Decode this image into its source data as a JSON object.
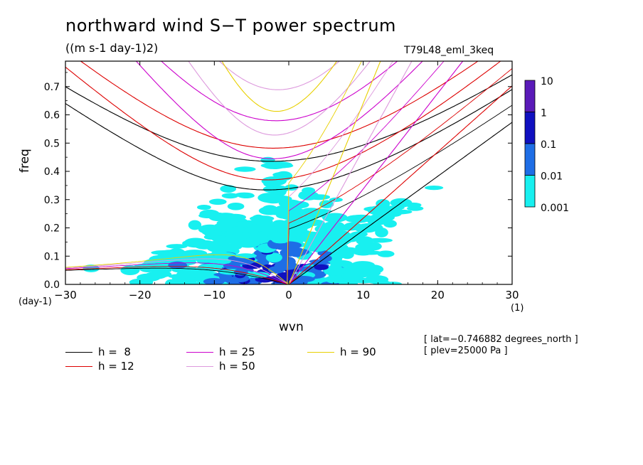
{
  "chart_data": {
    "type": "heatmap",
    "title": "northward wind S−T power spectrum",
    "units": "((m s-1 day-1)2)",
    "run_id": "T79L48_eml_3keq",
    "xlabel": "wvn",
    "ylabel": "freq",
    "x_unit": "(1)",
    "y_unit": "(day-1)",
    "xlim": [
      -30,
      30
    ],
    "ylim": [
      0,
      0.79
    ],
    "x_ticks": [
      "−30",
      "−20",
      "−10",
      "0",
      "10",
      "20",
      "30"
    ],
    "x_tick_values": [
      -30,
      -20,
      -10,
      0,
      10,
      20,
      30
    ],
    "y_ticks": [
      "0.0",
      "0.1",
      "0.2",
      "0.3",
      "0.4",
      "0.5",
      "0.6",
      "0.7"
    ],
    "y_tick_values": [
      0,
      0.1,
      0.2,
      0.3,
      0.4,
      0.5,
      0.6,
      0.7
    ],
    "colorbar": {
      "labels": [
        "10",
        "1",
        "0.1",
        "0.01",
        "0.001"
      ],
      "levels": [
        10,
        1,
        0.1,
        0.01,
        0.001
      ],
      "colors": [
        "#5a1ab8",
        "#1010c0",
        "#1e6ee6",
        "#18f0f0"
      ]
    },
    "contour_colors": {
      "low": "#18f0f0",
      "mid": "#1e6ee6",
      "high": "#1010c0"
    },
    "dispersion_curves": [
      {
        "label": "h =  8",
        "h": 8,
        "color": "#000000"
      },
      {
        "label": "h = 12",
        "h": 12,
        "color": "#dd0000"
      },
      {
        "label": "h = 25",
        "h": 25,
        "color": "#cc00cc"
      },
      {
        "label": "h = 50",
        "h": 50,
        "color": "#dd99dd"
      },
      {
        "label": "h = 90",
        "h": 90,
        "color": "#e8d000"
      }
    ],
    "annotations": [
      "[ lat=−0.746882 degrees_north ]",
      "[ plev=25000 Pa ]"
    ]
  }
}
